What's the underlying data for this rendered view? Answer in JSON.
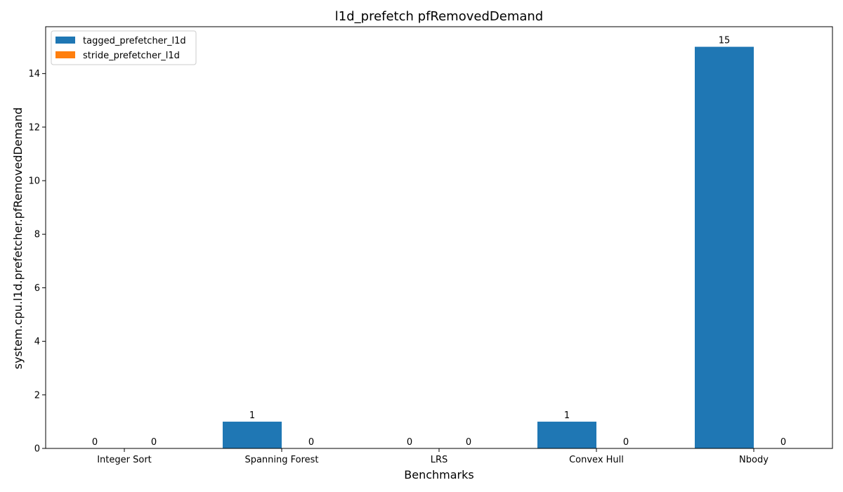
{
  "chart_data": {
    "type": "bar",
    "title": "l1d_prefetch pfRemovedDemand",
    "xlabel": "Benchmarks",
    "ylabel": "system.cpu.l1d.prefetcher.pfRemovedDemand",
    "categories": [
      "Integer Sort",
      "Spanning Forest",
      "LRS",
      "Convex Hull",
      "Nbody"
    ],
    "series": [
      {
        "name": "tagged_prefetcher_l1d",
        "color": "#1f77b4",
        "values": [
          0,
          1,
          0,
          1,
          15
        ]
      },
      {
        "name": "stride_prefetcher_l1d",
        "color": "#ff7f0e",
        "values": [
          0,
          0,
          0,
          0,
          0
        ]
      }
    ],
    "ylim": [
      0,
      15.75
    ],
    "yticks": [
      0,
      2,
      4,
      6,
      8,
      10,
      12,
      14
    ],
    "grid": false,
    "legend_position": "top-left",
    "data_labels": true
  }
}
